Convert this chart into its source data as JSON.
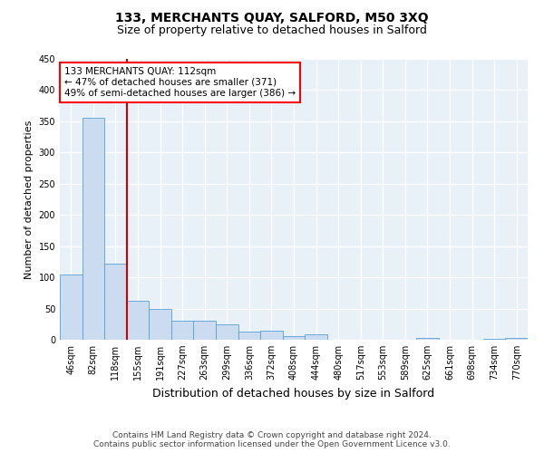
{
  "title": "133, MERCHANTS QUAY, SALFORD, M50 3XQ",
  "subtitle": "Size of property relative to detached houses in Salford",
  "xlabel": "Distribution of detached houses by size in Salford",
  "ylabel": "Number of detached properties",
  "categories": [
    "46sqm",
    "82sqm",
    "118sqm",
    "155sqm",
    "191sqm",
    "227sqm",
    "263sqm",
    "299sqm",
    "336sqm",
    "372sqm",
    "408sqm",
    "444sqm",
    "480sqm",
    "517sqm",
    "553sqm",
    "589sqm",
    "625sqm",
    "661sqm",
    "698sqm",
    "734sqm",
    "770sqm"
  ],
  "values": [
    105,
    355,
    122,
    62,
    49,
    30,
    30,
    25,
    13,
    15,
    6,
    8,
    0,
    0,
    0,
    0,
    3,
    0,
    0,
    2,
    3
  ],
  "bar_color": "#ccdcf0",
  "bar_edge_color": "#5a9fd4",
  "red_line_index": 2,
  "annotation_text": "133 MERCHANTS QUAY: 112sqm\n← 47% of detached houses are smaller (371)\n49% of semi-detached houses are larger (386) →",
  "annotation_box_color": "white",
  "annotation_box_edge_color": "red",
  "red_line_color": "#cc0000",
  "footer_line1": "Contains HM Land Registry data © Crown copyright and database right 2024.",
  "footer_line2": "Contains public sector information licensed under the Open Government Licence v3.0.",
  "ylim": [
    0,
    450
  ],
  "yticks": [
    0,
    50,
    100,
    150,
    200,
    250,
    300,
    350,
    400,
    450
  ],
  "bg_color": "#e8f0f8",
  "grid_color": "white",
  "title_fontsize": 10,
  "subtitle_fontsize": 9,
  "xlabel_fontsize": 9,
  "ylabel_fontsize": 8,
  "tick_fontsize": 7,
  "footer_fontsize": 6.5,
  "annot_fontsize": 7.5
}
